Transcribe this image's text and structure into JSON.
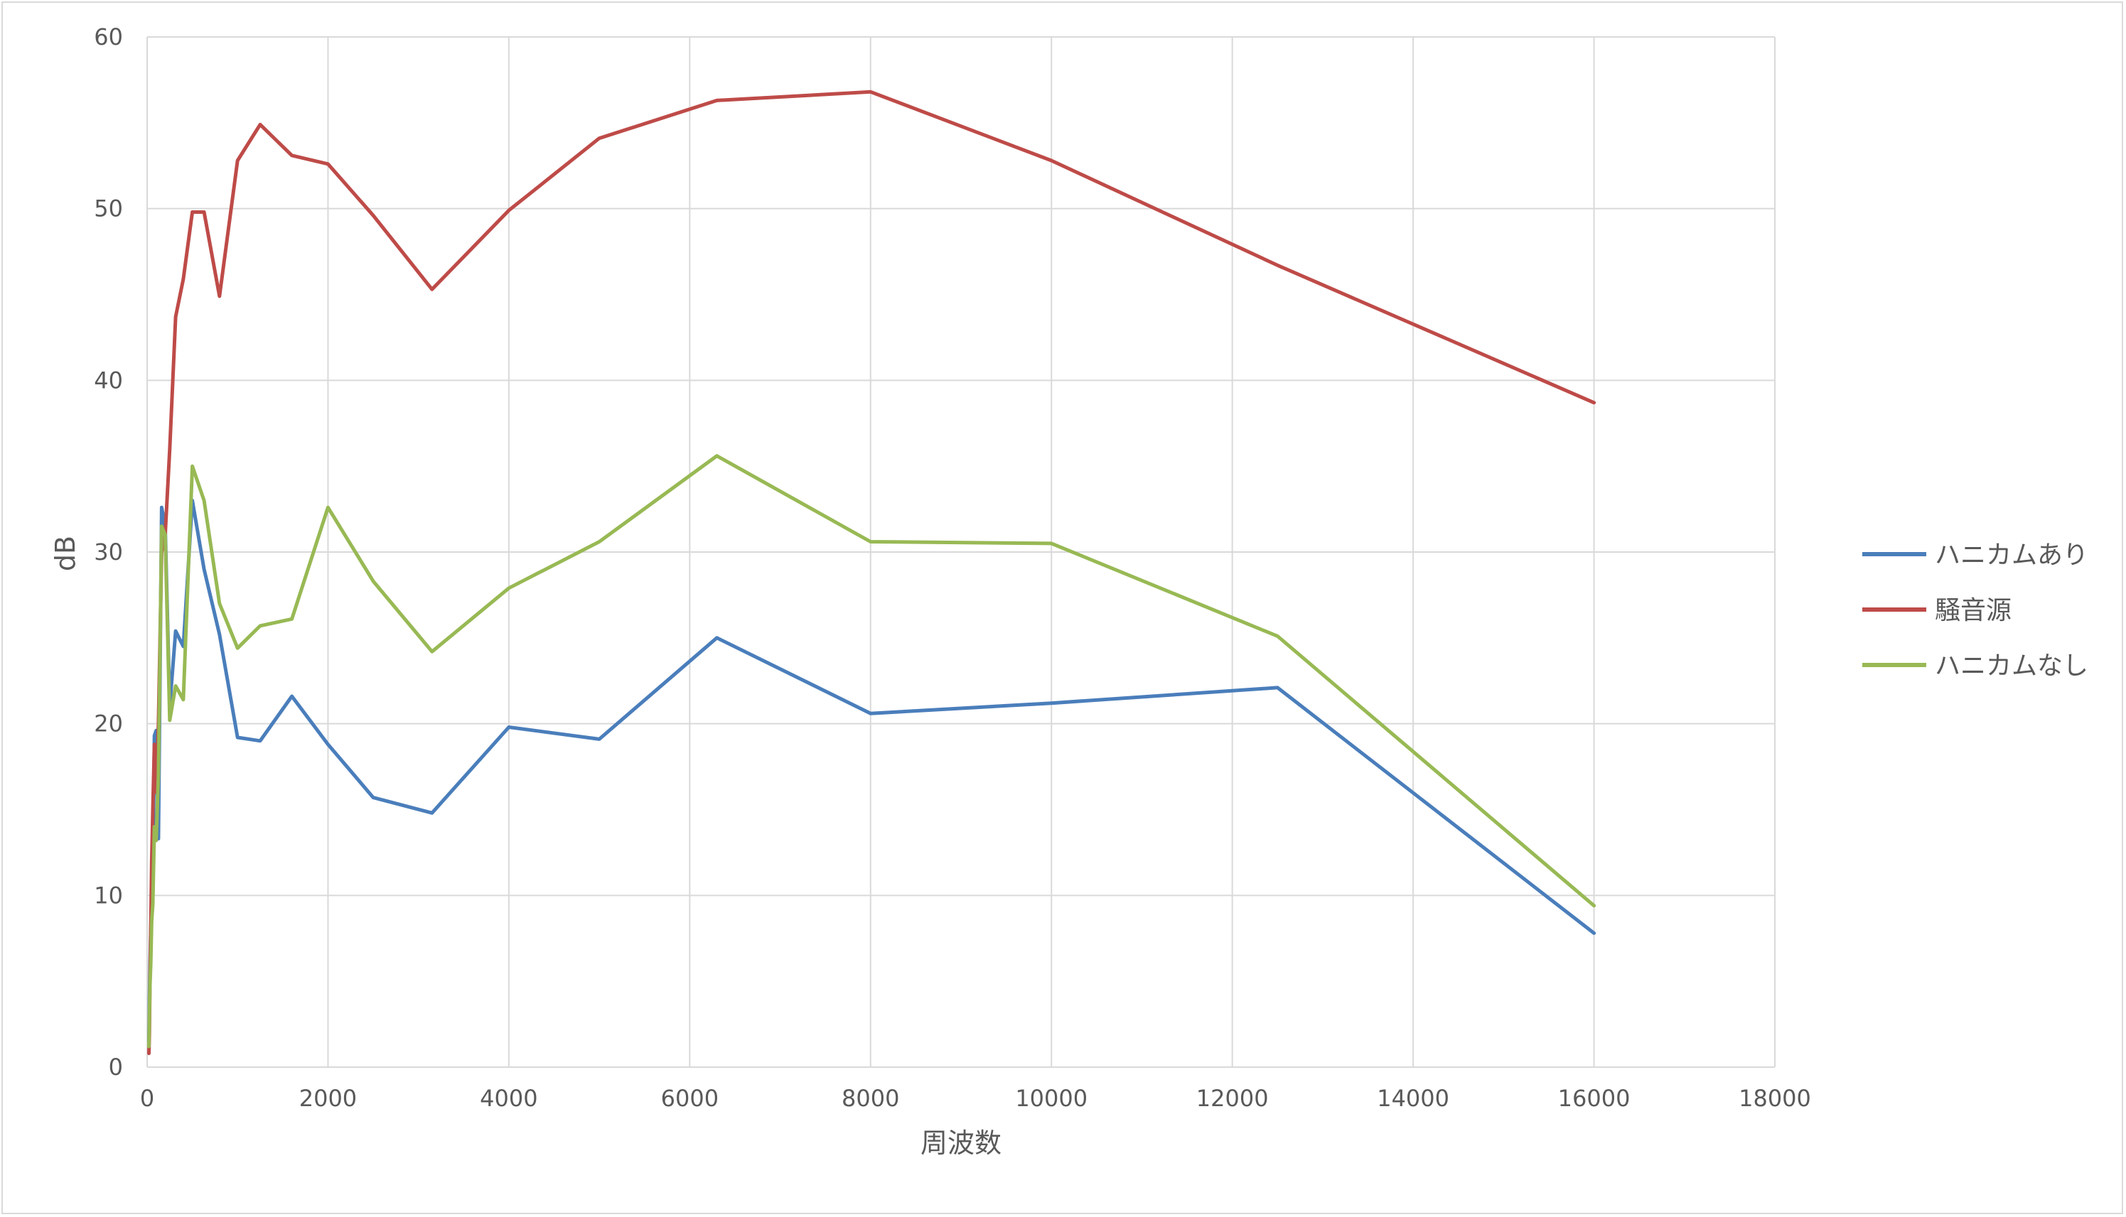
{
  "chart_data": {
    "type": "line",
    "title": "",
    "xlabel": "周波数",
    "ylabel": "dB",
    "xlim": [
      0,
      18000
    ],
    "ylim": [
      0,
      60
    ],
    "xticks": [
      0,
      2000,
      4000,
      6000,
      8000,
      10000,
      12000,
      14000,
      16000,
      18000
    ],
    "yticks": [
      0,
      10,
      20,
      30,
      40,
      50,
      60
    ],
    "grid": true,
    "legend_position": "right",
    "series": [
      {
        "name": "ハニカムあり",
        "color": "#4a7ebb",
        "points": [
          [
            20,
            1.5
          ],
          [
            25,
            4
          ],
          [
            31.5,
            6
          ],
          [
            40,
            8
          ],
          [
            50,
            9
          ],
          [
            63,
            10.2
          ],
          [
            80,
            19.3
          ],
          [
            100,
            19.6
          ],
          [
            125,
            13.3
          ],
          [
            160,
            32.6
          ],
          [
            200,
            31.5
          ],
          [
            250,
            21
          ],
          [
            315,
            25.4
          ],
          [
            400,
            24.5
          ],
          [
            500,
            33
          ],
          [
            630,
            29
          ],
          [
            800,
            25.2
          ],
          [
            1000,
            19.2
          ],
          [
            1250,
            19
          ],
          [
            1600,
            21.6
          ],
          [
            2000,
            18.8
          ],
          [
            2500,
            15.7
          ],
          [
            3150,
            14.8
          ],
          [
            4000,
            19.8
          ],
          [
            5000,
            19.1
          ],
          [
            6300,
            25
          ],
          [
            8000,
            20.6
          ],
          [
            10000,
            21.2
          ],
          [
            12500,
            22.1
          ],
          [
            16000,
            7.8
          ]
        ]
      },
      {
        "name": "騒音源",
        "color": "#be4b48",
        "points": [
          [
            20,
            0.8
          ],
          [
            25,
            2
          ],
          [
            31.5,
            5
          ],
          [
            40,
            8
          ],
          [
            50,
            12
          ],
          [
            63,
            15
          ],
          [
            80,
            18.8
          ],
          [
            100,
            16
          ],
          [
            125,
            20
          ],
          [
            160,
            30
          ],
          [
            200,
            31
          ],
          [
            250,
            36
          ],
          [
            315,
            43.7
          ],
          [
            400,
            45.9
          ],
          [
            500,
            49.8
          ],
          [
            630,
            49.8
          ],
          [
            800,
            44.9
          ],
          [
            1000,
            52.8
          ],
          [
            1250,
            54.9
          ],
          [
            1600,
            53.1
          ],
          [
            2000,
            52.6
          ],
          [
            2500,
            49.6
          ],
          [
            3150,
            45.3
          ],
          [
            4000,
            49.9
          ],
          [
            5000,
            54.1
          ],
          [
            6300,
            56.3
          ],
          [
            8000,
            56.8
          ],
          [
            10000,
            52.8
          ],
          [
            12500,
            46.7
          ],
          [
            16000,
            38.7
          ]
        ]
      },
      {
        "name": "ハニカムなし",
        "color": "#98b954",
        "points": [
          [
            20,
            1.2
          ],
          [
            25,
            3
          ],
          [
            31.5,
            4.8
          ],
          [
            40,
            6
          ],
          [
            50,
            8.5
          ],
          [
            63,
            9.5
          ],
          [
            80,
            14
          ],
          [
            100,
            13.2
          ],
          [
            125,
            17
          ],
          [
            160,
            31.5
          ],
          [
            200,
            31
          ],
          [
            250,
            20.2
          ],
          [
            315,
            22.2
          ],
          [
            400,
            21.4
          ],
          [
            500,
            35
          ],
          [
            630,
            33
          ],
          [
            800,
            27
          ],
          [
            1000,
            24.4
          ],
          [
            1250,
            25.7
          ],
          [
            1600,
            26.1
          ],
          [
            2000,
            32.6
          ],
          [
            2500,
            28.3
          ],
          [
            3150,
            24.2
          ],
          [
            4000,
            27.9
          ],
          [
            5000,
            30.6
          ],
          [
            6300,
            35.6
          ],
          [
            8000,
            30.6
          ],
          [
            10000,
            30.5
          ],
          [
            12500,
            25.1
          ],
          [
            16000,
            9.4
          ]
        ]
      }
    ]
  }
}
